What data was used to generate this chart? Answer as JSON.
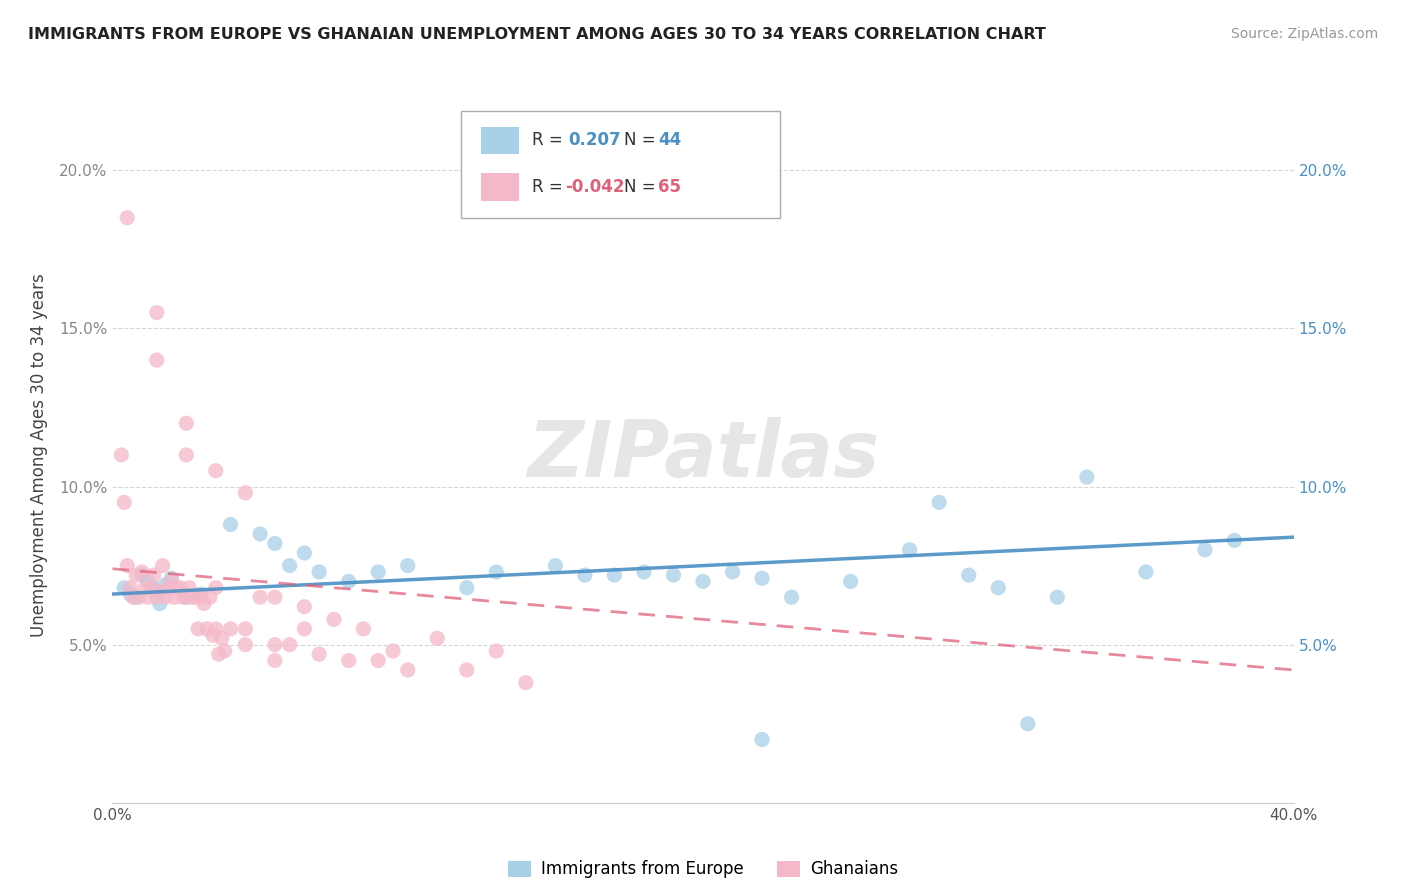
{
  "title": "IMMIGRANTS FROM EUROPE VS GHANAIAN UNEMPLOYMENT AMONG AGES 30 TO 34 YEARS CORRELATION CHART",
  "source": "Source: ZipAtlas.com",
  "ylabel": "Unemployment Among Ages 30 to 34 years",
  "xlim": [
    0.0,
    0.4
  ],
  "ylim": [
    0.0,
    0.22
  ],
  "xtick_positions": [
    0.0,
    0.05,
    0.1,
    0.15,
    0.2,
    0.25,
    0.3,
    0.35,
    0.4
  ],
  "xtick_labels": [
    "0.0%",
    "",
    "",
    "",
    "",
    "",
    "",
    "",
    "40.0%"
  ],
  "ytick_positions": [
    0.0,
    0.05,
    0.1,
    0.15,
    0.2
  ],
  "ytick_labels_left": [
    "",
    "5.0%",
    "10.0%",
    "15.0%",
    "20.0%"
  ],
  "ytick_labels_right": [
    "",
    "5.0%",
    "10.0%",
    "15.0%",
    "20.0%"
  ],
  "blue_R": "0.207",
  "blue_N": "44",
  "pink_R": "-0.042",
  "pink_N": "65",
  "blue_color": "#a8d0e8",
  "pink_color": "#f5b8c8",
  "blue_line_color": "#4a90c4",
  "pink_line_color": "#e0607a",
  "right_tick_color": "#4a90c4",
  "watermark": "ZIPatlas",
  "dot_size": 120,
  "blue_line_start_y": 0.066,
  "blue_line_end_y": 0.084,
  "pink_line_start_y": 0.074,
  "pink_line_end_y": 0.042,
  "blue_points_x": [
    0.004,
    0.006,
    0.008,
    0.01,
    0.012,
    0.014,
    0.015,
    0.016,
    0.018,
    0.02,
    0.025,
    0.03,
    0.04,
    0.05,
    0.055,
    0.06,
    0.065,
    0.07,
    0.08,
    0.09,
    0.1,
    0.12,
    0.13,
    0.15,
    0.16,
    0.17,
    0.18,
    0.19,
    0.2,
    0.21,
    0.22,
    0.23,
    0.25,
    0.27,
    0.29,
    0.3,
    0.32,
    0.33,
    0.35,
    0.37,
    0.38,
    0.22,
    0.28,
    0.31
  ],
  "blue_points_y": [
    0.068,
    0.066,
    0.065,
    0.072,
    0.07,
    0.068,
    0.067,
    0.063,
    0.069,
    0.071,
    0.065,
    0.066,
    0.088,
    0.085,
    0.082,
    0.075,
    0.079,
    0.073,
    0.07,
    0.073,
    0.075,
    0.068,
    0.073,
    0.075,
    0.072,
    0.072,
    0.073,
    0.072,
    0.07,
    0.073,
    0.071,
    0.065,
    0.07,
    0.08,
    0.072,
    0.068,
    0.065,
    0.103,
    0.073,
    0.08,
    0.083,
    0.02,
    0.095,
    0.025
  ],
  "pink_points_x": [
    0.003,
    0.004,
    0.005,
    0.006,
    0.007,
    0.008,
    0.009,
    0.01,
    0.011,
    0.012,
    0.013,
    0.014,
    0.015,
    0.016,
    0.017,
    0.018,
    0.019,
    0.02,
    0.021,
    0.022,
    0.023,
    0.024,
    0.025,
    0.026,
    0.027,
    0.028,
    0.029,
    0.03,
    0.031,
    0.032,
    0.033,
    0.034,
    0.035,
    0.036,
    0.037,
    0.038,
    0.04,
    0.045,
    0.05,
    0.055,
    0.06,
    0.065,
    0.07,
    0.08,
    0.09,
    0.1,
    0.11,
    0.12,
    0.13,
    0.14,
    0.015,
    0.025,
    0.035,
    0.045,
    0.055,
    0.065,
    0.075,
    0.085,
    0.095,
    0.015,
    0.025,
    0.035,
    0.045,
    0.055,
    0.005
  ],
  "pink_points_y": [
    0.11,
    0.095,
    0.075,
    0.068,
    0.065,
    0.072,
    0.065,
    0.073,
    0.068,
    0.065,
    0.068,
    0.072,
    0.065,
    0.067,
    0.075,
    0.065,
    0.068,
    0.07,
    0.065,
    0.068,
    0.068,
    0.065,
    0.065,
    0.068,
    0.065,
    0.065,
    0.055,
    0.065,
    0.063,
    0.055,
    0.065,
    0.053,
    0.055,
    0.047,
    0.052,
    0.048,
    0.055,
    0.05,
    0.065,
    0.05,
    0.05,
    0.055,
    0.047,
    0.045,
    0.045,
    0.042,
    0.052,
    0.042,
    0.048,
    0.038,
    0.14,
    0.12,
    0.105,
    0.098,
    0.065,
    0.062,
    0.058,
    0.055,
    0.048,
    0.155,
    0.11,
    0.068,
    0.055,
    0.045,
    0.185
  ]
}
